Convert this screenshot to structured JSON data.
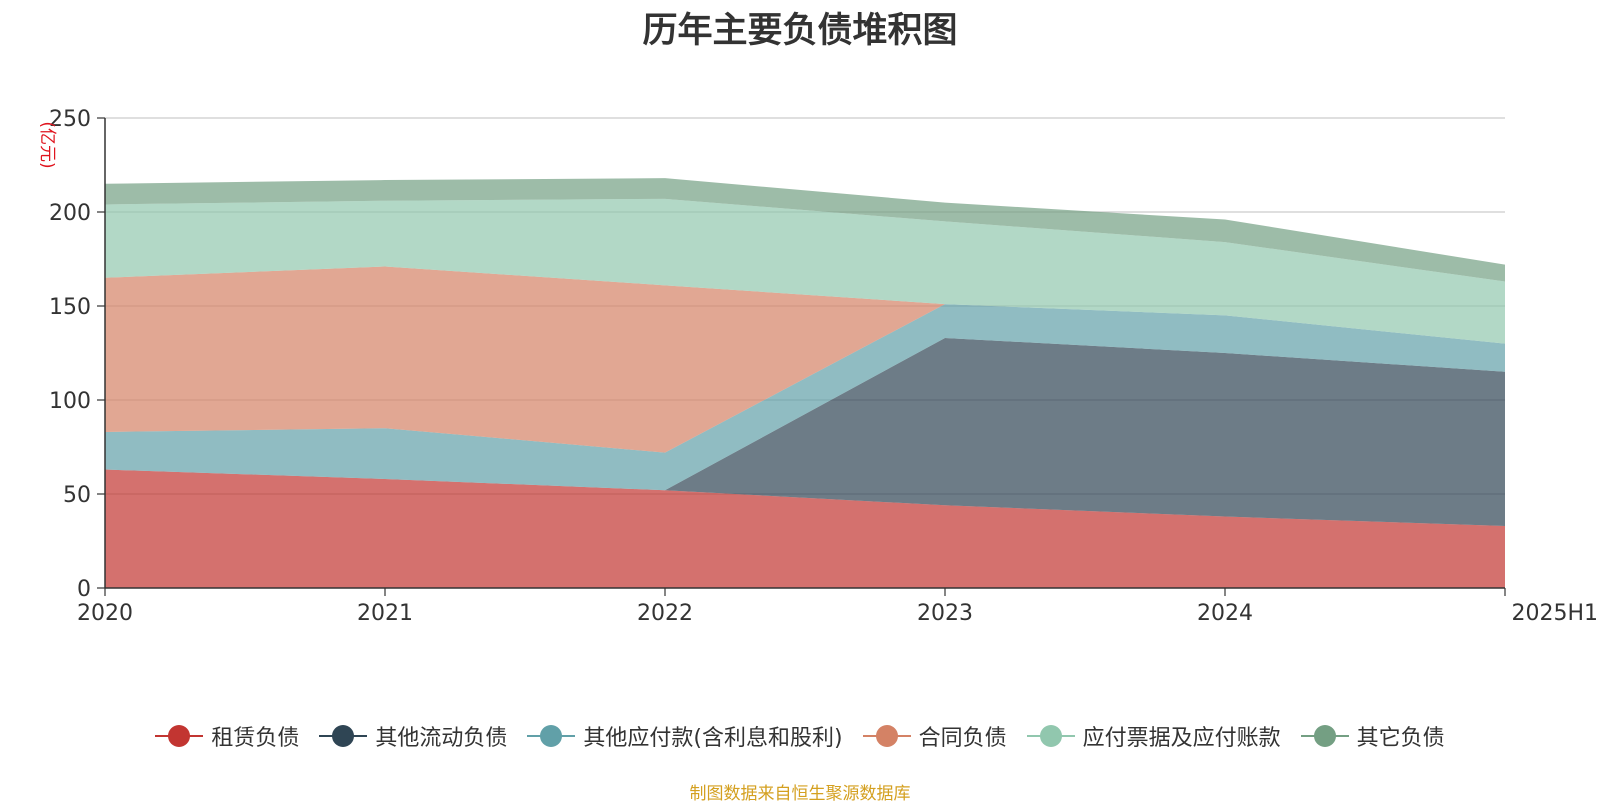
{
  "chart_data": {
    "type": "area",
    "stacked": true,
    "title": "历年主要负债堆积图",
    "ylabel": "(亿元)",
    "xlabel": "",
    "categories": [
      "2020",
      "2021",
      "2022",
      "2023",
      "2024",
      "2025H1"
    ],
    "ylim": [
      0,
      250
    ],
    "yticks": [
      0,
      50,
      100,
      150,
      200,
      250
    ],
    "grid": true,
    "legend_position": "bottom",
    "series": [
      {
        "name": "租赁负债",
        "color": "#c23531",
        "values": [
          63,
          58,
          52,
          44,
          38,
          33
        ]
      },
      {
        "name": "其他流动负债",
        "color": "#2f4554",
        "values": [
          0,
          0,
          0,
          89,
          87,
          82
        ]
      },
      {
        "name": "其他应付款(含利息和股利)",
        "color": "#61a0a8",
        "values": [
          20,
          27,
          20,
          18,
          20,
          15
        ]
      },
      {
        "name": "合同负债",
        "color": "#d48265",
        "values": [
          82,
          86,
          89,
          0,
          0,
          0
        ]
      },
      {
        "name": "应付票据及应付账款",
        "color": "#91c7ae",
        "values": [
          39,
          35,
          46,
          44,
          39,
          33
        ]
      },
      {
        "name": "其它负债",
        "color": "#749f83",
        "values": [
          11,
          11,
          11,
          10,
          12,
          9
        ]
      }
    ]
  },
  "footer": {
    "source": "制图数据来自恒生聚源数据库"
  }
}
